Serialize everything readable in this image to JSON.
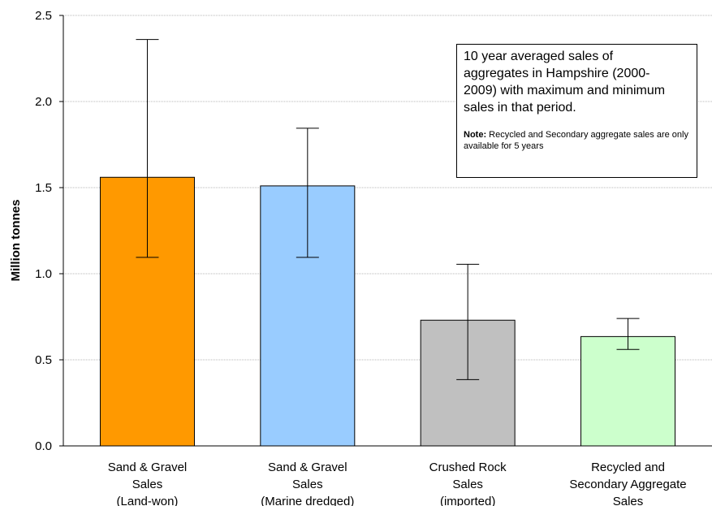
{
  "chart_data": {
    "type": "bar",
    "categories": [
      [
        "Sand & Gravel",
        "Sales",
        "(Land-won)"
      ],
      [
        "Sand & Gravel",
        "Sales",
        "(Marine dredged)"
      ],
      [
        "Crushed Rock",
        "Sales",
        "(imported)"
      ],
      [
        "Recycled and",
        "Secondary Aggregate",
        "Sales"
      ]
    ],
    "values": [
      1.56,
      1.51,
      0.73,
      0.635
    ],
    "error_max": [
      2.36,
      1.845,
      1.055,
      0.74
    ],
    "error_min": [
      1.095,
      1.095,
      0.385,
      0.56
    ],
    "colors": [
      "#ff9900",
      "#99ccff",
      "#c0c0c0",
      "#ccffcc"
    ],
    "ylabel": "Million tonnes",
    "xlabel": "",
    "ylim": [
      0,
      2.5
    ],
    "yticks": [
      "0.0",
      "0.5",
      "1.0",
      "1.5",
      "2.0",
      "2.5"
    ],
    "grid": true,
    "annotation": {
      "title": "10 year averaged sales of aggregates in Hampshire (2000-2009) with maximum and minimum sales in that period.",
      "title_lines": [
        "10 year averaged sales of",
        "aggregates in Hampshire (2000-",
        "2009) with maximum and minimum",
        "sales in that period."
      ],
      "note_label": "Note:",
      "note_text": " Recycled and Secondary aggregate sales are only available for 5 years"
    }
  }
}
